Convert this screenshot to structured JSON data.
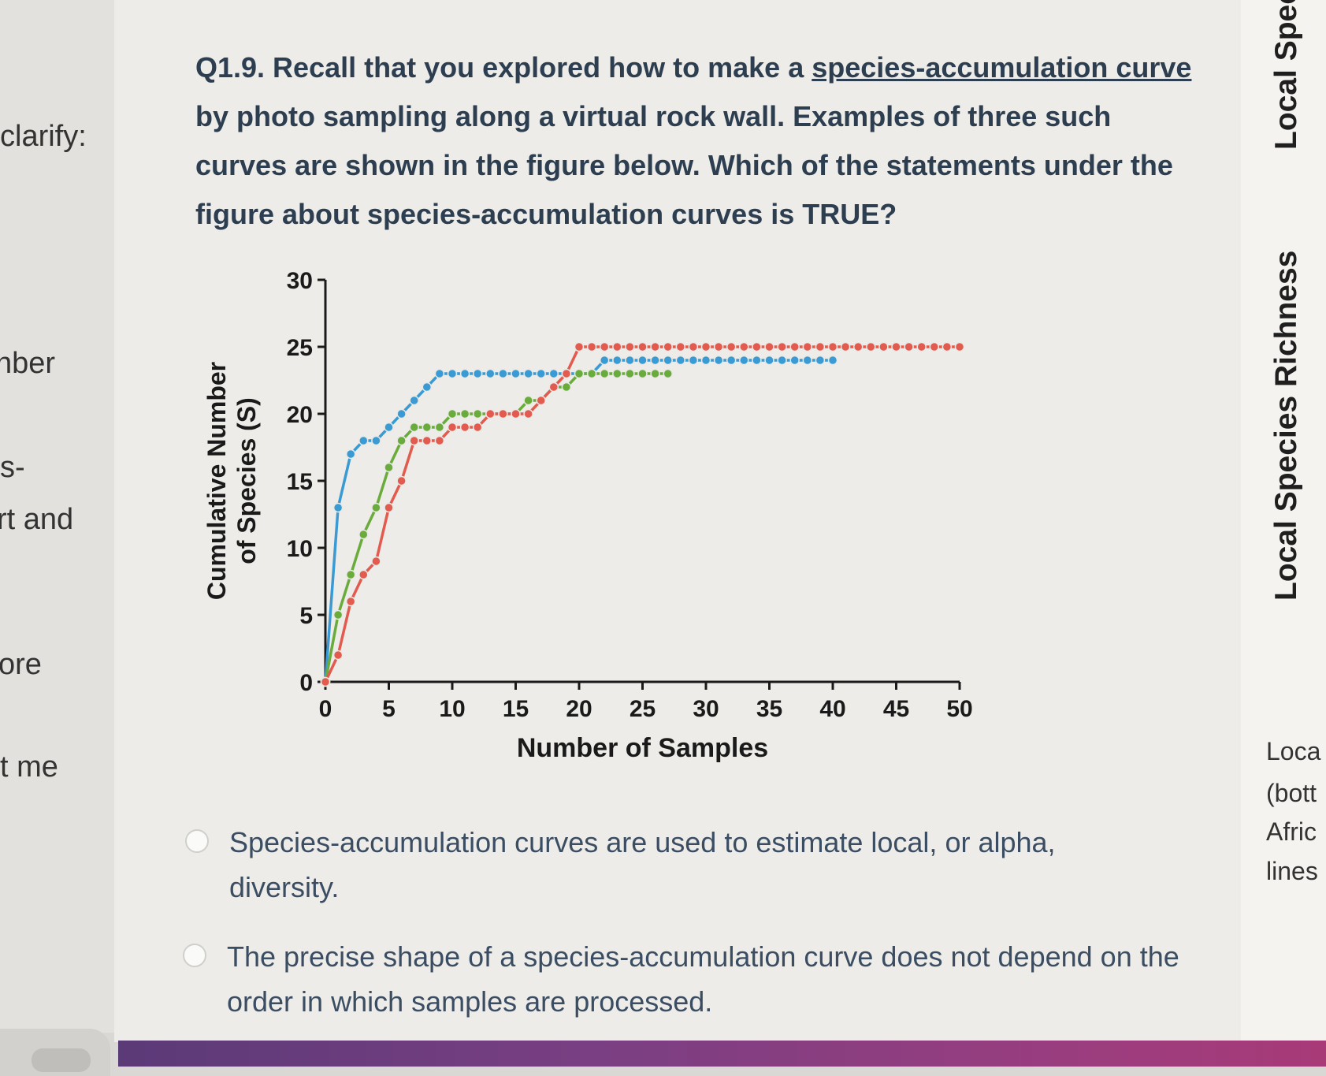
{
  "left_fragments": [
    "clarify:",
    "nber",
    "s-",
    "rt and",
    "ore",
    "t me"
  ],
  "question": {
    "prefix": "Q1.9. Recall that you explored how to make a ",
    "link": "species-accumulation curve",
    "suffix": " by photo sampling along a virtual rock wall. Examples of three such curves are shown in the figure below. Which of the statements under the figure about species-accumulation curves is TRUE?"
  },
  "options": [
    "Species-accumulation curves are used to estimate local, or alpha, diversity.",
    "The precise shape of a species-accumulation curve does not depend on the order in which samples are processed."
  ],
  "right_panel": {
    "vertical_top": "Local Speci",
    "vertical_mid": "Local Species Richness",
    "fragments": [
      "Loca",
      "(bott",
      "Afric",
      "lines"
    ]
  },
  "colors": {
    "blue": "#3a9ad4",
    "green": "#6aac3c",
    "red": "#e35a4e",
    "question_text": "#2c3e50"
  },
  "chart_data": {
    "type": "line",
    "xlabel": "Number of Samples",
    "ylabel": "Cumulative Number of Species (S)",
    "xlim": [
      0,
      50
    ],
    "ylim": [
      0,
      30
    ],
    "xticks": [
      "0",
      "5",
      "10",
      "15",
      "20",
      "25",
      "30",
      "35",
      "40",
      "45",
      "50"
    ],
    "yticks": [
      "0",
      "5",
      "10",
      "15",
      "20",
      "25",
      "30"
    ],
    "series": [
      {
        "color": "blue",
        "x": [
          0,
          1,
          2,
          3,
          4,
          5,
          6,
          7,
          8,
          9,
          10,
          11,
          12,
          13,
          14,
          15,
          16,
          17,
          18,
          19,
          20,
          21,
          22,
          23,
          24,
          25,
          26,
          27,
          28,
          29,
          30,
          31,
          32,
          33,
          34,
          35,
          36,
          37,
          38,
          39,
          40
        ],
        "y": [
          0,
          13,
          17,
          18,
          18,
          19,
          20,
          21,
          22,
          23,
          23,
          23,
          23,
          23,
          23,
          23,
          23,
          23,
          23,
          23,
          23,
          23,
          24,
          24,
          24,
          24,
          24,
          24,
          24,
          24,
          24,
          24,
          24,
          24,
          24,
          24,
          24,
          24,
          24,
          24,
          24
        ]
      },
      {
        "color": "green",
        "x": [
          0,
          1,
          2,
          3,
          4,
          5,
          6,
          7,
          8,
          9,
          10,
          11,
          12,
          13,
          14,
          15,
          16,
          17,
          18,
          19,
          20,
          21,
          22,
          23,
          24,
          25,
          26,
          27
        ],
        "y": [
          0,
          5,
          8,
          11,
          13,
          16,
          18,
          19,
          19,
          19,
          20,
          20,
          20,
          20,
          20,
          20,
          21,
          21,
          22,
          22,
          23,
          23,
          23,
          23,
          23,
          23,
          23,
          23
        ]
      },
      {
        "color": "red",
        "x": [
          0,
          1,
          2,
          3,
          4,
          5,
          6,
          7,
          8,
          9,
          10,
          11,
          12,
          13,
          14,
          15,
          16,
          17,
          18,
          19,
          20,
          21,
          22,
          23,
          24,
          25,
          26,
          27,
          28,
          29,
          30,
          31,
          32,
          33,
          34,
          35,
          36,
          37,
          38,
          39,
          40,
          41,
          42,
          43,
          44,
          45,
          46,
          47,
          48,
          49,
          50
        ],
        "y": [
          0,
          2,
          6,
          8,
          9,
          13,
          15,
          18,
          18,
          18,
          19,
          19,
          19,
          20,
          20,
          20,
          20,
          21,
          22,
          23,
          25,
          25,
          25,
          25,
          25,
          25,
          25,
          25,
          25,
          25,
          25,
          25,
          25,
          25,
          25,
          25,
          25,
          25,
          25,
          25,
          25,
          25,
          25,
          25,
          25,
          25,
          25,
          25,
          25,
          25,
          25
        ]
      }
    ]
  }
}
